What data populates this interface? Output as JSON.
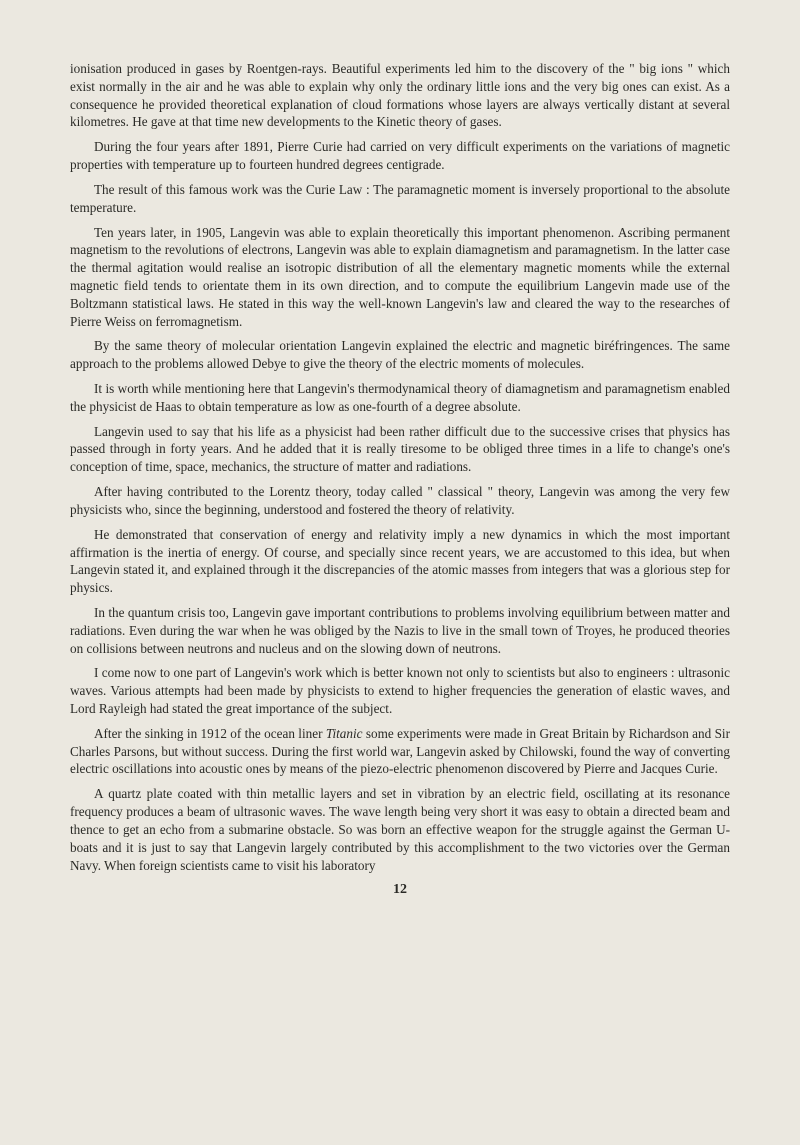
{
  "paragraphs": [
    {
      "indent": false,
      "html": "ionisation produced in gases by Roentgen-rays. Beautiful experiments led him to the discovery of the \" big ions \" which exist normally in the air and he was able to explain why only the ordinary little ions and the very big ones can exist. As a consequence he provided theoretical explanation of cloud formations whose layers are always vertically distant at several kilometres. He gave at that time new developments to the Kinetic theory of gases."
    },
    {
      "indent": true,
      "html": "During the four years after 1891, Pierre Curie had carried on very difficult experiments on the variations of magnetic properties with temperature up to fourteen hundred degrees centigrade."
    },
    {
      "indent": true,
      "html": "The result of this famous work was the Curie Law : The paramagnetic moment is inversely proportional to the absolute temperature."
    },
    {
      "indent": true,
      "html": "Ten years later, in 1905, Langevin was able to explain theoretically this important phenomenon. Ascribing permanent magnetism to the revolutions of electrons, Langevin was able to explain diamagnetism and paramagnetism. In the latter case the thermal agitation would realise an isotropic distribution of all the elementary magnetic moments while the external magnetic field tends to orientate them in its own direction, and to compute the equilibrium Langevin made use of the Boltzmann statistical laws. He stated in this way the well-known Langevin's law and cleared the way to the researches of Pierre Weiss on ferromagnetism."
    },
    {
      "indent": true,
      "html": "By the same theory of molecular orientation Langevin explained the electric and magnetic biréfringences. The same approach to the problems allowed Debye to give the theory of the electric moments of molecules."
    },
    {
      "indent": true,
      "html": "It is worth while mentioning here that Langevin's thermodynamical theory of diamagnetism and paramagnetism enabled the physicist de Haas to obtain temperature as low as one-fourth of a degree absolute."
    },
    {
      "indent": true,
      "html": "Langevin used to say that his life as a physicist had been rather difficult due to the successive crises that physics has passed through in forty years. And he added that it is really tiresome to be obliged three times in a life to change's one's conception of time, space, mechanics, the structure of matter and radiations."
    },
    {
      "indent": true,
      "html": "After having contributed to the Lorentz theory, today called \" classical \" theory, Langevin was among the very few physicists who, since the beginning, understood and fostered the theory of relativity."
    },
    {
      "indent": true,
      "html": "He demonstrated that conservation of energy and relativity imply a new dynamics in which the most important affirmation is the inertia of energy. Of course, and specially since recent years, we are accustomed to this idea, but when Langevin stated it, and explained through it the discrepancies of the atomic masses from integers that was a glorious step for physics."
    },
    {
      "indent": true,
      "html": "In the quantum crisis too, Langevin gave important contributions to problems involving equilibrium between matter and radiations. Even during the war when he was obliged by the Nazis to live in the small town of Troyes, he produced theories on collisions between neutrons and nucleus and on the slowing down of neutrons."
    },
    {
      "indent": true,
      "html": "I come now to one part of Langevin's work which is better known not only to scientists but also to engineers : ultrasonic waves. Various attempts had been made by physicists to extend to higher frequencies the generation of elastic waves, and Lord Rayleigh had stated the great importance of the subject."
    },
    {
      "indent": true,
      "html": "After the sinking in 1912 of the ocean liner <span class=\"italic\">Titanic</span> some experiments were made in Great Britain by Richardson and Sir Charles Parsons, but without success. During the first world war, Langevin asked by Chilowski, found the way of converting electric oscillations into acoustic ones by means of the piezo-electric phenomenon discovered by Pierre and Jacques Curie."
    },
    {
      "indent": true,
      "html": "A quartz plate coated with thin metallic layers and set in vibration by an electric field, oscillating at its resonance frequency produces a beam of ultrasonic waves. The wave length being very short it was easy to obtain a directed beam and thence to get an echo from a submarine obstacle. So was born an effective weapon for the struggle against the German U-boats and it is just to say that Langevin largely contributed by this accomplishment to the two victories over the German Navy. When foreign scientists came to visit his laboratory"
    }
  ],
  "pageNumber": "12",
  "style": {
    "backgroundColor": "#ebe8e0",
    "textColor": "#2a2a26",
    "bodyFontSize": 13.2,
    "lineHeight": 1.35,
    "pageWidth": 800,
    "pageHeight": 1145
  }
}
